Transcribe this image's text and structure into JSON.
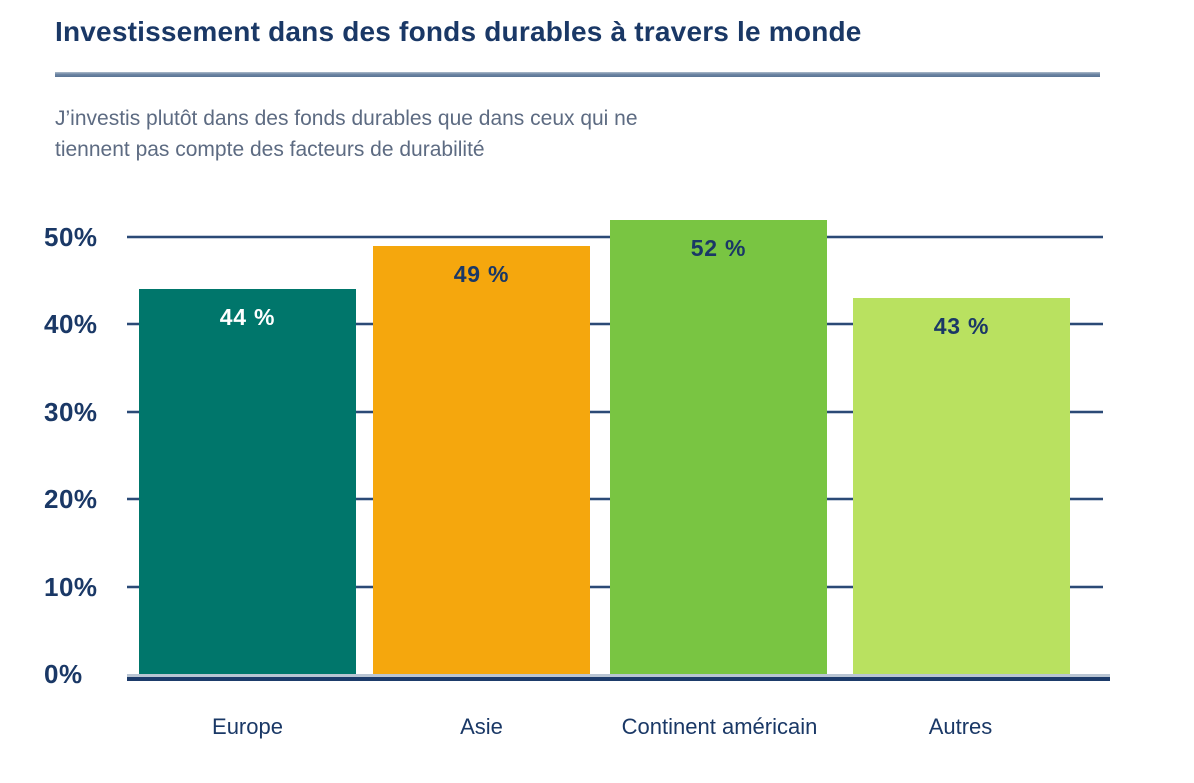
{
  "header": {
    "title": "Investissement dans des fonds durables à travers le monde",
    "subtitle_line1": "J’investis plutôt dans des fonds durables que dans ceux qui ne",
    "subtitle_line2": "tiennent pas compte des facteurs de durabilité"
  },
  "chart_data": {
    "type": "bar",
    "title": "Investissement dans des fonds durables à travers le monde",
    "subtitle": "J’investis plutôt dans des fonds durables que dans ceux qui ne tiennent pas compte des facteurs de durabilité",
    "categories": [
      "Europe",
      "Asie",
      "Continent américain",
      "Autres"
    ],
    "values": [
      44,
      49,
      52,
      43
    ],
    "value_labels": [
      "44 %",
      "49 %",
      "52 %",
      "43 %"
    ],
    "bar_colors": [
      "#00766B",
      "#F5A70D",
      "#79C542",
      "#B9E160"
    ],
    "value_label_colors": [
      "#FFFFFF",
      "#1A3866",
      "#1A3866",
      "#1A3866"
    ],
    "y_ticks": [
      "0%",
      "10%",
      "20%",
      "30%",
      "40%",
      "50%"
    ],
    "ylim": [
      0,
      52
    ],
    "grid": true,
    "legend_position": "none",
    "xlabel": "",
    "ylabel": ""
  },
  "colors": {
    "title_text": "#1A3866",
    "subtitle_text": "#5d6b82",
    "axis_text": "#1A3866",
    "gridline": "#2B4A76",
    "baseline_dark": "#1d3b6a",
    "baseline_light": "#b9c5d3",
    "title_rule": "#6d86a4",
    "background": "#ffffff"
  }
}
